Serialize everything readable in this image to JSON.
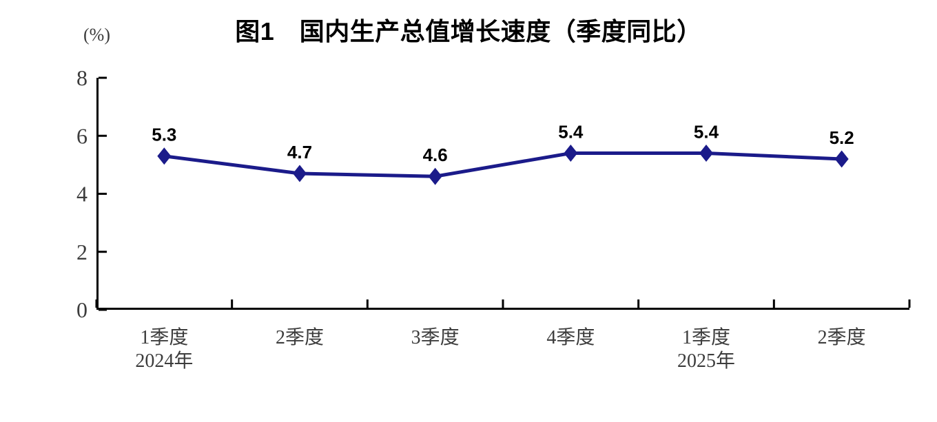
{
  "chart_data": {
    "type": "line",
    "title": "图1　国内生产总值增长速度（季度同比）",
    "ylabel": "(%)",
    "xlabel": "",
    "categories": [
      "1季度",
      "2季度",
      "3季度",
      "4季度",
      "1季度",
      "2季度"
    ],
    "category_sublabels": [
      "2024年",
      "",
      "",
      "",
      "2025年",
      ""
    ],
    "values": [
      5.3,
      4.7,
      4.6,
      5.4,
      5.4,
      5.2
    ],
    "data_labels": [
      "5.3",
      "4.7",
      "4.6",
      "5.4",
      "5.4",
      "5.2"
    ],
    "ylim": [
      0,
      8
    ],
    "yticks": [
      0,
      2,
      4,
      6,
      8
    ],
    "grid": false,
    "legend": "none",
    "marker": "diamond",
    "line_color": "#1b1b8a",
    "marker_color": "#1b1b8a",
    "data_label_color": "#000000",
    "axis_color": "#000000"
  }
}
